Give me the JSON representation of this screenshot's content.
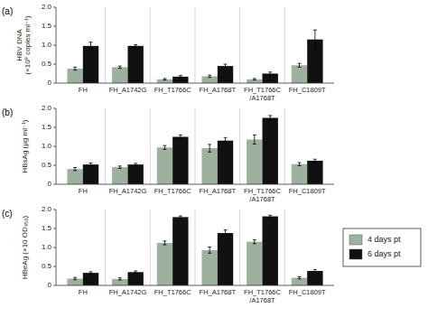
{
  "chart_data": [
    {
      "type": "bar",
      "title": "(a)",
      "ylabel": "HBV DNA\n(×10⁹ copies ml⁻¹)",
      "categories": [
        "FH",
        "FH_A1742G",
        "FH_T1766C",
        "FH_A1768T",
        "FH_T1766C\n/A1768T",
        "FH_C1809T"
      ],
      "series": [
        {
          "name": "4 days pt",
          "color": "#9EB09E",
          "values": [
            0.38,
            0.42,
            0.1,
            0.18,
            0.1,
            0.47
          ],
          "errors": [
            0.04,
            0.03,
            0.02,
            0.03,
            0.02,
            0.05
          ]
        },
        {
          "name": "6 days pt",
          "color": "#111111",
          "values": [
            0.98,
            0.98,
            0.17,
            0.45,
            0.25,
            1.15
          ],
          "errors": [
            0.1,
            0.03,
            0.03,
            0.05,
            0.04,
            0.25
          ]
        }
      ],
      "ylim": [
        0,
        2.0
      ],
      "yticks": [
        0,
        0.5,
        {
          "value": 1.0,
          "label": "1.0"
        },
        1.5,
        {
          "value": 2.0,
          "label": "2.0"
        }
      ],
      "grid": false
    },
    {
      "type": "bar",
      "title": "(b)",
      "ylabel": "HBsAg (µg ml⁻¹)",
      "categories": [
        "FH",
        "FH_A1742G",
        "FH_T1766C",
        "FH_A1768T",
        "FH_T1766C\n/A1768T",
        "FH_C1809T"
      ],
      "series": [
        {
          "name": "4 days pt",
          "color": "#9EB09E",
          "values": [
            0.4,
            0.45,
            0.97,
            0.95,
            1.18,
            0.53
          ],
          "errors": [
            0.04,
            0.03,
            0.05,
            0.1,
            0.12,
            0.04
          ]
        },
        {
          "name": "6 days pt",
          "color": "#111111",
          "values": [
            0.52,
            0.52,
            1.25,
            1.15,
            1.75,
            0.62
          ],
          "errors": [
            0.04,
            0.03,
            0.05,
            0.08,
            0.06,
            0.04
          ]
        }
      ],
      "ylim": [
        0,
        2.0
      ],
      "yticks": [
        0,
        0.5,
        {
          "value": 1.0,
          "label": "1.0"
        },
        1.5,
        {
          "value": 2.0,
          "label": "2.0"
        }
      ],
      "grid": false
    },
    {
      "type": "bar",
      "title": "(c)",
      "ylabel": "HBeAg (×10 OD₄₅₀)",
      "categories": [
        "FH",
        "FH_A1742G",
        "FH_T1766C",
        "FH_A1768T",
        "FH_T1766C\n/A1768T",
        "FH_C1809T"
      ],
      "series": [
        {
          "name": "4 days pt",
          "color": "#9EB09E",
          "values": [
            0.18,
            0.17,
            1.12,
            0.93,
            1.15,
            0.2
          ],
          "errors": [
            0.03,
            0.03,
            0.05,
            0.08,
            0.05,
            0.03
          ]
        },
        {
          "name": "6 days pt",
          "color": "#111111",
          "values": [
            0.33,
            0.35,
            1.8,
            1.38,
            1.82,
            0.38
          ],
          "errors": [
            0.03,
            0.03,
            0.03,
            0.08,
            0.03,
            0.04
          ]
        }
      ],
      "ylim": [
        0,
        2.0
      ],
      "yticks": [
        0,
        0.5,
        {
          "value": 1.0,
          "label": "1.0"
        },
        1.5,
        {
          "value": 2.0,
          "label": "2.0"
        }
      ],
      "grid": false,
      "legend": "right"
    }
  ]
}
